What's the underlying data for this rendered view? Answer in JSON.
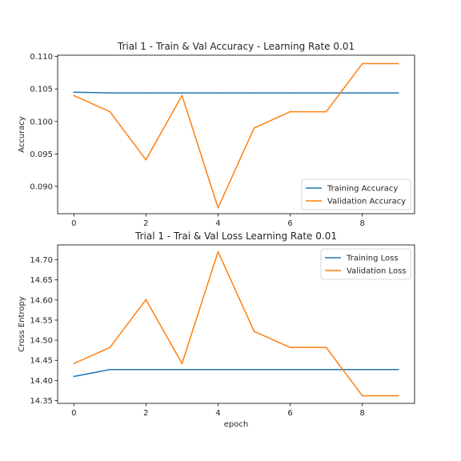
{
  "colors": {
    "training": "#1f77b4",
    "validation": "#ff7f0e"
  },
  "chart_data": [
    {
      "type": "line",
      "title": "Trial 1 - Train & Val Accuracy - Learning Rate 0.01",
      "xlabel": "",
      "ylabel": "Accuracy",
      "x": [
        0,
        1,
        2,
        3,
        4,
        5,
        6,
        7,
        8,
        9
      ],
      "xticks": [
        0,
        2,
        4,
        6,
        8
      ],
      "yticks": [
        0.09,
        0.095,
        0.1,
        0.105,
        0.11
      ],
      "ytick_labels": [
        "0.090",
        "0.095",
        "0.100",
        "0.105",
        "0.110"
      ],
      "xlim": [
        -0.45,
        9.45
      ],
      "ylim": [
        0.0858,
        0.1102
      ],
      "legend_position": "lower-right",
      "grid": false,
      "series": [
        {
          "name": "Training Accuracy",
          "color_key": "training",
          "values": [
            0.1045,
            0.1044,
            0.1044,
            0.1044,
            0.1044,
            0.1044,
            0.1044,
            0.1044,
            0.1044,
            0.1044
          ]
        },
        {
          "name": "Validation Accuracy",
          "color_key": "validation",
          "values": [
            0.104,
            0.1015,
            0.0941,
            0.104,
            0.0867,
            0.099,
            0.1015,
            0.1015,
            0.1089,
            0.1089
          ]
        }
      ]
    },
    {
      "type": "line",
      "title": "Trial 1 - Trai & Val Loss Learning Rate 0.01",
      "xlabel": "epoch",
      "ylabel": "Cross Entropy",
      "x": [
        0,
        1,
        2,
        3,
        4,
        5,
        6,
        7,
        8,
        9
      ],
      "xticks": [
        0,
        2,
        4,
        6,
        8
      ],
      "yticks": [
        14.35,
        14.4,
        14.45,
        14.5,
        14.55,
        14.6,
        14.65,
        14.7
      ],
      "ytick_labels": [
        "14.35",
        "14.40",
        "14.45",
        "14.50",
        "14.55",
        "14.60",
        "14.65",
        "14.70"
      ],
      "xlim": [
        -0.45,
        9.45
      ],
      "ylim": [
        14.343,
        14.737
      ],
      "legend_position": "top-right",
      "grid": false,
      "series": [
        {
          "name": "Training Loss",
          "color_key": "training",
          "values": [
            14.41,
            14.427,
            14.427,
            14.427,
            14.427,
            14.427,
            14.427,
            14.427,
            14.427,
            14.427
          ]
        },
        {
          "name": "Validation Loss",
          "color_key": "validation",
          "values": [
            14.442,
            14.482,
            14.601,
            14.442,
            14.72,
            14.522,
            14.482,
            14.482,
            14.362,
            14.362
          ]
        }
      ]
    }
  ]
}
